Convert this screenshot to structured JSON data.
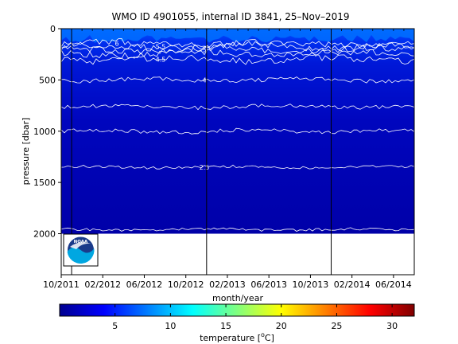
{
  "chart_data": {
    "type": "heatmap",
    "title": "WMO ID 4901055, internal ID 3841, 25–Nov–2019",
    "xlabel": "month/year",
    "ylabel": "pressure [dbar]",
    "x_ticks": [
      "10/2011",
      "02/2012",
      "06/2012",
      "10/2012",
      "02/2013",
      "06/2013",
      "10/2013",
      "02/2014",
      "06/2014"
    ],
    "x_range": [
      "2011-10",
      "2014-08"
    ],
    "y_ticks": [
      0,
      500,
      1000,
      1500,
      2000
    ],
    "y_range": [
      0,
      2400
    ],
    "y_reversed": true,
    "data_bottom_pressure_dbar": 2000,
    "colorbar": {
      "label_prefix": "temperature [",
      "label_degree": "o",
      "label_suffix": "C]",
      "ticks": [
        5,
        10,
        15,
        20,
        25,
        30
      ],
      "range": [
        0,
        32
      ],
      "colormap": "jet"
    },
    "contours": [
      {
        "pressure": 145,
        "label": "6"
      },
      {
        "pressure": 175,
        "label": "5.5"
      },
      {
        "pressure": 205,
        "label": "5"
      },
      {
        "pressure": 245,
        "label": ""
      },
      {
        "pressure": 300,
        "label": "4.5"
      },
      {
        "pressure": 500,
        "label": "4"
      },
      {
        "pressure": 760,
        "label": ""
      },
      {
        "pressure": 1000,
        "label": ""
      },
      {
        "pressure": 1350,
        "label": "2.5"
      },
      {
        "pressure": 1960,
        "label": ""
      }
    ],
    "vertical_markers": [
      "2011-11",
      "2012-12",
      "2013-12"
    ],
    "logo_text": "NOAA",
    "colors": {
      "deep": "#0000a6",
      "mid": "#0010d8",
      "surface": "#0050ff",
      "contour": "#ffffff",
      "frame": "#000000"
    }
  }
}
